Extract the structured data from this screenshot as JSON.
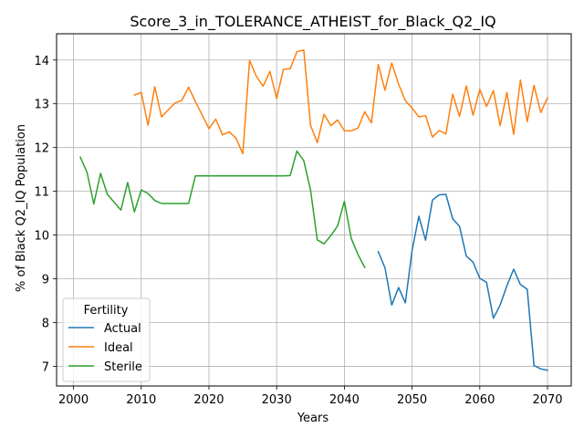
{
  "chart_data": {
    "type": "line",
    "title": "Score_3_in_TOLERANCE_ATHEIST_for_Black_Q2_IQ",
    "xlabel": "Years",
    "ylabel": "% of Black Q2_IQ Population",
    "xlim": [
      1997.5,
      2073.5
    ],
    "ylim": [
      6.55,
      14.6
    ],
    "xticks": [
      2000,
      2010,
      2020,
      2030,
      2040,
      2050,
      2060,
      2070
    ],
    "yticks": [
      7,
      8,
      9,
      10,
      11,
      12,
      13,
      14
    ],
    "grid": true,
    "legend": {
      "title": "Fertility",
      "placement": "lower-left"
    },
    "series": [
      {
        "name": "Actual",
        "color": "#1f77b4",
        "x": [
          2045,
          2046,
          2047,
          2048,
          2049,
          2050,
          2051,
          2052,
          2053,
          2054,
          2055,
          2056,
          2057,
          2058,
          2059,
          2060,
          2061,
          2062,
          2063,
          2064,
          2065,
          2066,
          2067,
          2068,
          2069,
          2070
        ],
        "y": [
          9.62,
          9.25,
          8.4,
          8.8,
          8.45,
          9.65,
          10.43,
          9.88,
          10.8,
          10.92,
          10.93,
          10.37,
          10.2,
          9.52,
          9.38,
          9.01,
          8.92,
          8.1,
          8.4,
          8.84,
          9.22,
          8.87,
          8.76,
          7.02,
          6.94,
          6.91
        ]
      },
      {
        "name": "Ideal",
        "color": "#ff7f0e",
        "x": [
          2009,
          2010,
          2011,
          2012,
          2013,
          2014,
          2015,
          2016,
          2017,
          2018,
          2019,
          2020,
          2021,
          2022,
          2023,
          2024,
          2025,
          2026,
          2027,
          2028,
          2029,
          2030,
          2031,
          2032,
          2033,
          2034,
          2035,
          2036,
          2037,
          2038,
          2039,
          2040,
          2041,
          2042,
          2043,
          2044,
          2045,
          2046,
          2047,
          2048,
          2049,
          2050,
          2051,
          2052,
          2053,
          2054,
          2055,
          2056,
          2057,
          2058,
          2059,
          2060,
          2061,
          2062,
          2063,
          2064,
          2065,
          2066,
          2067,
          2068,
          2069,
          2070
        ],
        "y": [
          13.2,
          13.26,
          12.51,
          13.39,
          12.7,
          12.86,
          13.02,
          13.08,
          13.38,
          13.05,
          12.74,
          12.43,
          12.65,
          12.29,
          12.36,
          12.21,
          11.86,
          13.99,
          13.63,
          13.4,
          13.74,
          13.12,
          13.79,
          13.8,
          14.19,
          14.23,
          12.51,
          12.11,
          12.76,
          12.5,
          12.63,
          12.38,
          12.38,
          12.44,
          12.82,
          12.56,
          13.9,
          13.31,
          13.93,
          13.45,
          13.07,
          12.9,
          12.7,
          12.73,
          12.24,
          12.39,
          12.31,
          13.22,
          12.71,
          13.41,
          12.74,
          13.33,
          12.94,
          13.3,
          12.5,
          13.26,
          12.3,
          13.54,
          12.59,
          13.42,
          12.8,
          13.14
        ]
      },
      {
        "name": "Sterile",
        "color": "#2ca02c",
        "x": [
          2001,
          2002,
          2003,
          2004,
          2005,
          2006,
          2007,
          2008,
          2009,
          2010,
          2011,
          2012,
          2013,
          2014,
          2015,
          2016,
          2017,
          2018,
          2019,
          2020,
          2021,
          2022,
          2023,
          2024,
          2025,
          2026,
          2027,
          2028,
          2029,
          2030,
          2031,
          2032,
          2033,
          2034,
          2035,
          2036,
          2037,
          2038,
          2039,
          2040,
          2041,
          2042,
          2043
        ],
        "y": [
          11.78,
          11.43,
          10.71,
          11.41,
          10.93,
          10.75,
          10.57,
          11.2,
          10.53,
          11.03,
          10.95,
          10.79,
          10.72,
          10.72,
          10.72,
          10.72,
          10.72,
          11.35,
          11.35,
          11.35,
          11.35,
          11.35,
          11.35,
          11.35,
          11.35,
          11.35,
          11.35,
          11.35,
          11.35,
          11.35,
          11.35,
          11.36,
          11.92,
          11.7,
          11.03,
          9.89,
          9.8,
          9.99,
          10.21,
          10.77,
          9.93,
          9.56,
          9.26
        ]
      }
    ]
  }
}
